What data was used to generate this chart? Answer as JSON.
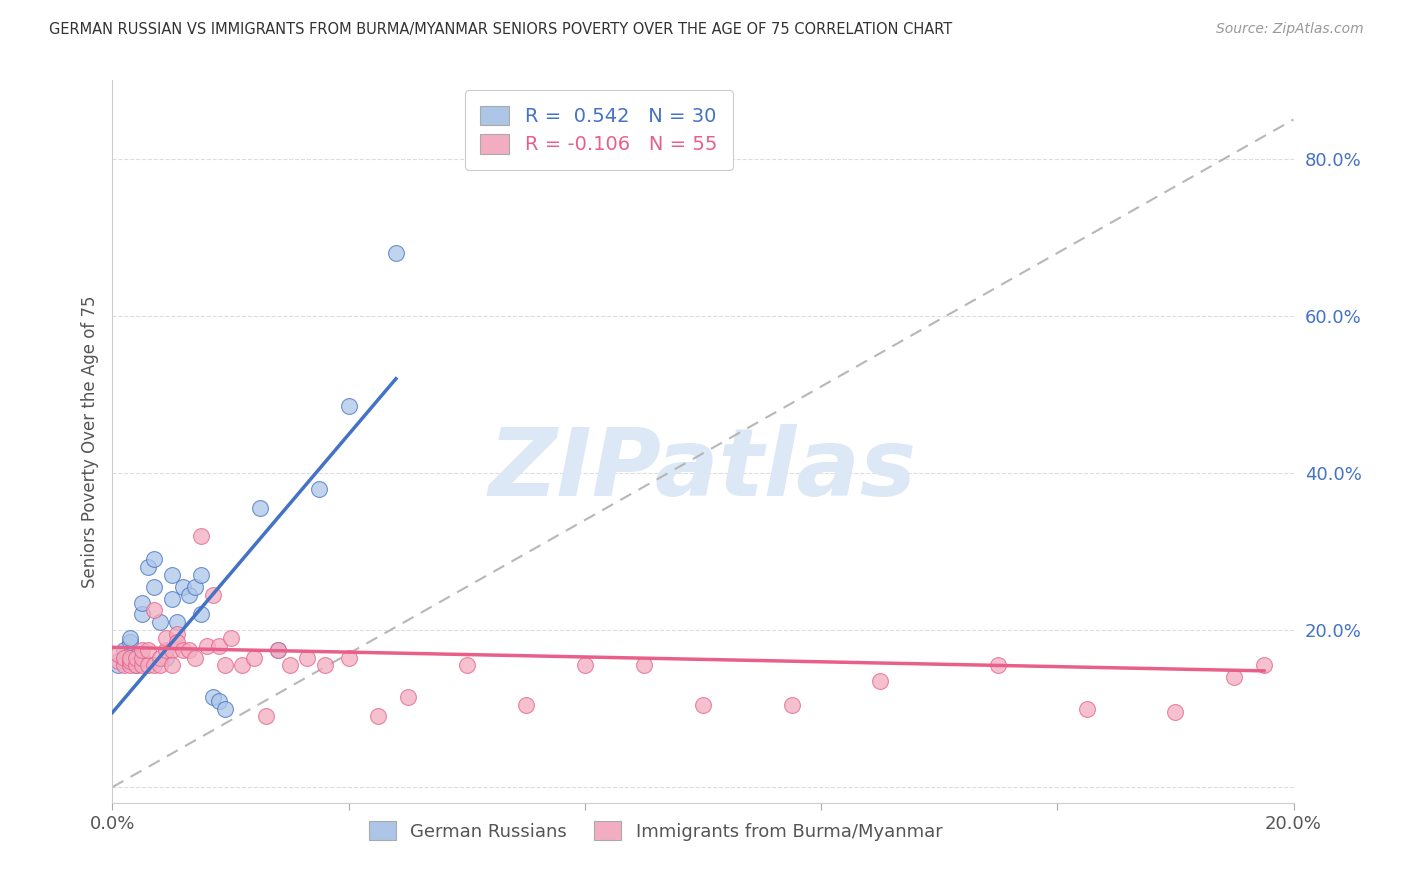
{
  "title": "GERMAN RUSSIAN VS IMMIGRANTS FROM BURMA/MYANMAR SENIORS POVERTY OVER THE AGE OF 75 CORRELATION CHART",
  "source": "Source: ZipAtlas.com",
  "ylabel": "Seniors Poverty Over the Age of 75",
  "xlim": [
    0.0,
    0.2
  ],
  "ylim": [
    -0.02,
    0.9
  ],
  "yticks": [
    0.0,
    0.2,
    0.4,
    0.6,
    0.8
  ],
  "ytick_labels": [
    "",
    "20.0%",
    "40.0%",
    "60.0%",
    "80.0%"
  ],
  "xticks": [
    0.0,
    0.04,
    0.08,
    0.12,
    0.16,
    0.2
  ],
  "xtick_labels": [
    "0.0%",
    "",
    "",
    "",
    "",
    "20.0%"
  ],
  "blue_R": 0.542,
  "blue_N": 30,
  "pink_R": -0.106,
  "pink_N": 55,
  "blue_color": "#adc6e8",
  "pink_color": "#f2adc0",
  "blue_line_color": "#4472c4",
  "pink_line_color": "#e8608a",
  "diag_line_color": "#b0b0b0",
  "watermark": "ZIPatlas",
  "watermark_color": "#dce8f5",
  "blue_scatter_x": [
    0.001,
    0.002,
    0.002,
    0.003,
    0.003,
    0.004,
    0.004,
    0.005,
    0.005,
    0.006,
    0.007,
    0.007,
    0.008,
    0.009,
    0.01,
    0.01,
    0.011,
    0.012,
    0.013,
    0.014,
    0.015,
    0.015,
    0.017,
    0.018,
    0.019,
    0.025,
    0.028,
    0.035,
    0.04,
    0.048
  ],
  "blue_scatter_y": [
    0.155,
    0.175,
    0.16,
    0.185,
    0.19,
    0.155,
    0.165,
    0.22,
    0.235,
    0.28,
    0.255,
    0.29,
    0.21,
    0.165,
    0.24,
    0.27,
    0.21,
    0.255,
    0.245,
    0.255,
    0.27,
    0.22,
    0.115,
    0.11,
    0.1,
    0.355,
    0.175,
    0.38,
    0.485,
    0.68
  ],
  "pink_scatter_x": [
    0.001,
    0.001,
    0.002,
    0.002,
    0.003,
    0.003,
    0.003,
    0.004,
    0.004,
    0.005,
    0.005,
    0.005,
    0.006,
    0.006,
    0.007,
    0.007,
    0.008,
    0.008,
    0.009,
    0.009,
    0.01,
    0.01,
    0.011,
    0.011,
    0.012,
    0.013,
    0.014,
    0.015,
    0.016,
    0.017,
    0.018,
    0.019,
    0.02,
    0.022,
    0.024,
    0.026,
    0.028,
    0.03,
    0.033,
    0.036,
    0.04,
    0.045,
    0.05,
    0.06,
    0.07,
    0.08,
    0.09,
    0.1,
    0.115,
    0.13,
    0.15,
    0.165,
    0.18,
    0.19,
    0.195
  ],
  "pink_scatter_y": [
    0.16,
    0.17,
    0.155,
    0.165,
    0.155,
    0.16,
    0.165,
    0.155,
    0.165,
    0.155,
    0.165,
    0.175,
    0.155,
    0.175,
    0.155,
    0.225,
    0.155,
    0.165,
    0.175,
    0.19,
    0.175,
    0.155,
    0.195,
    0.185,
    0.175,
    0.175,
    0.165,
    0.32,
    0.18,
    0.245,
    0.18,
    0.155,
    0.19,
    0.155,
    0.165,
    0.09,
    0.175,
    0.155,
    0.165,
    0.155,
    0.165,
    0.09,
    0.115,
    0.155,
    0.105,
    0.155,
    0.155,
    0.105,
    0.105,
    0.135,
    0.155,
    0.1,
    0.095,
    0.14,
    0.155
  ],
  "background_color": "#ffffff",
  "grid_color": "#dddddd"
}
